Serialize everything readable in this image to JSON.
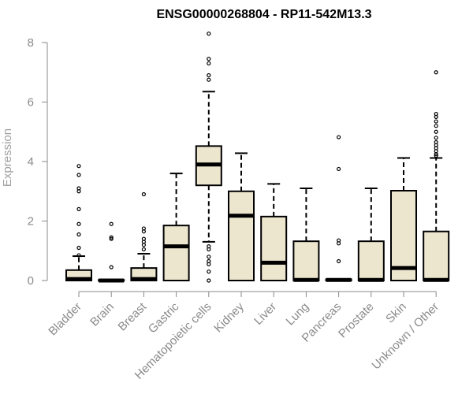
{
  "chart_data": {
    "type": "box",
    "title": "ENSG00000268804 - RP11-542M13.3",
    "xlabel": "",
    "ylabel": "Expression",
    "ylim": [
      0,
      8.3
    ],
    "yticks": [
      0,
      2,
      4,
      6,
      8
    ],
    "box_fill": "#ede6cf",
    "categories": [
      "Bladder",
      "Brain",
      "Breast",
      "Gastric",
      "Hematopoietic cells",
      "Kidney",
      "Liver",
      "Lung",
      "Pancreas",
      "Prostate",
      "Skin",
      "Unknown / Other"
    ],
    "boxes": [
      {
        "q1": 0,
        "median": 0.05,
        "q3": 0.35,
        "whisker_low": 0,
        "whisker_high": 0.82,
        "outliers": [
          3.85,
          3.55,
          3.1,
          3.0,
          2.4,
          1.9,
          1.55,
          1.1,
          0.85
        ]
      },
      {
        "q1": 0,
        "median": 0,
        "q3": 0.02,
        "whisker_low": 0,
        "whisker_high": 0.02,
        "outliers": [
          1.9,
          1.45,
          1.4,
          0.45
        ]
      },
      {
        "q1": 0,
        "median": 0.05,
        "q3": 0.42,
        "whisker_low": 0,
        "whisker_high": 0.9,
        "outliers": [
          2.9,
          1.75,
          1.65,
          1.4,
          1.3,
          1.2,
          1.05
        ]
      },
      {
        "q1": 0,
        "median": 1.15,
        "q3": 1.85,
        "whisker_low": 0,
        "whisker_high": 3.6,
        "outliers": []
      },
      {
        "q1": 3.2,
        "median": 3.9,
        "q3": 4.52,
        "whisker_low": 1.3,
        "whisker_high": 6.35,
        "outliers": [
          8.3,
          7.45,
          7.3,
          6.9,
          6.75,
          1.15,
          1.05,
          0.8,
          0.65,
          0.55,
          0.3,
          0.0
        ]
      },
      {
        "q1": 0,
        "median": 2.18,
        "q3": 3.0,
        "whisker_low": 0,
        "whisker_high": 4.28,
        "outliers": []
      },
      {
        "q1": 0,
        "median": 0.6,
        "q3": 2.15,
        "whisker_low": 0,
        "whisker_high": 3.25,
        "outliers": []
      },
      {
        "q1": 0,
        "median": 0.02,
        "q3": 1.32,
        "whisker_low": 0,
        "whisker_high": 3.1,
        "outliers": []
      },
      {
        "q1": 0,
        "median": 0.02,
        "q3": 0.04,
        "whisker_low": 0,
        "whisker_high": 0.04,
        "outliers": [
          4.82,
          3.75,
          1.35,
          1.25,
          0.65
        ]
      },
      {
        "q1": 0,
        "median": 0.02,
        "q3": 1.32,
        "whisker_low": 0,
        "whisker_high": 3.1,
        "outliers": []
      },
      {
        "q1": 0,
        "median": 0.42,
        "q3": 3.02,
        "whisker_low": 0,
        "whisker_high": 4.12,
        "outliers": []
      },
      {
        "q1": 0,
        "median": 0.02,
        "q3": 1.65,
        "whisker_low": 0,
        "whisker_high": 4.12,
        "outliers": [
          7.0,
          5.6,
          5.5,
          5.35,
          5.2,
          5.0,
          4.8,
          4.65,
          4.55,
          4.45,
          4.35,
          4.25,
          4.2
        ]
      }
    ]
  }
}
